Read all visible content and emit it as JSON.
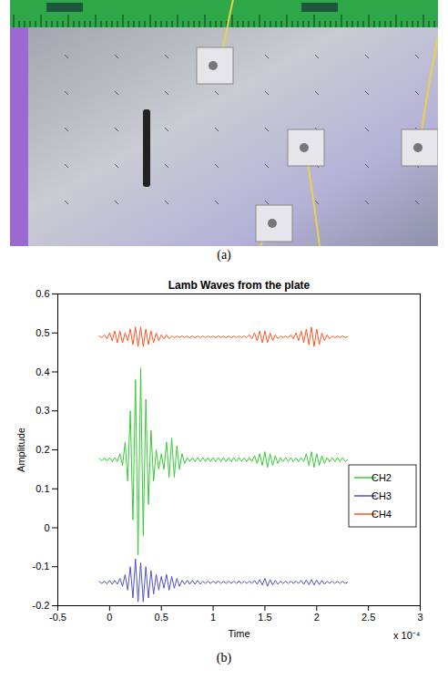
{
  "captions": [
    "(a)",
    "(b)"
  ],
  "chart_data": {
    "type": "line",
    "title": "Lamb Waves from the plate",
    "xlabel": "Time",
    "ylabel": "Amplitude",
    "annotations": [
      "x 10⁻⁴"
    ],
    "xlim": [
      -0.5,
      3
    ],
    "xticks": [
      -0.5,
      0,
      0.5,
      1,
      1.5,
      2,
      2.5,
      3
    ],
    "ylim": [
      -0.2,
      0.6
    ],
    "yticks": [
      -0.2,
      -0.1,
      0,
      0.1,
      0.2,
      0.3,
      0.4,
      0.5,
      0.6
    ],
    "grid": false,
    "legend": "lower right",
    "x": [
      -0.1,
      -0.075,
      -0.05,
      -0.025,
      0,
      0.025,
      0.05,
      0.075,
      0.1,
      0.125,
      0.15,
      0.175,
      0.2,
      0.225,
      0.25,
      0.275,
      0.3,
      0.325,
      0.35,
      0.375,
      0.4,
      0.425,
      0.45,
      0.475,
      0.5,
      0.525,
      0.55,
      0.575,
      0.6,
      0.625,
      0.65,
      0.675,
      0.7,
      0.725,
      0.75,
      0.775,
      0.8,
      0.825,
      0.85,
      0.875,
      0.9,
      0.925,
      0.95,
      0.975,
      1,
      1.025,
      1.05,
      1.075,
      1.1,
      1.125,
      1.15,
      1.175,
      1.2,
      1.225,
      1.25,
      1.275,
      1.3,
      1.325,
      1.35,
      1.375,
      1.4,
      1.425,
      1.45,
      1.475,
      1.5,
      1.525,
      1.55,
      1.575,
      1.6,
      1.625,
      1.65,
      1.675,
      1.7,
      1.725,
      1.75,
      1.775,
      1.8,
      1.825,
      1.85,
      1.875,
      1.9,
      1.925,
      1.95,
      1.975,
      2,
      2.025,
      2.05,
      2.075,
      2.1,
      2.125,
      2.15,
      2.175,
      2.2,
      2.225,
      2.25,
      2.275,
      2.3
    ],
    "series": [
      {
        "name": "CH2",
        "color": "#33cc33",
        "values": [
          0.178,
          0.172,
          0.179,
          0.171,
          0.18,
          0.17,
          0.18,
          0.17,
          0.19,
          0.16,
          0.22,
          0.12,
          0.3,
          0.02,
          0.38,
          -0.07,
          0.41,
          -0.02,
          0.33,
          0.06,
          0.25,
          0.12,
          0.2,
          0.15,
          0.19,
          0.15,
          0.22,
          0.13,
          0.23,
          0.13,
          0.21,
          0.15,
          0.19,
          0.165,
          0.18,
          0.17,
          0.18,
          0.17,
          0.18,
          0.17,
          0.18,
          0.17,
          0.18,
          0.17,
          0.18,
          0.17,
          0.18,
          0.17,
          0.18,
          0.17,
          0.18,
          0.17,
          0.18,
          0.17,
          0.18,
          0.17,
          0.18,
          0.17,
          0.18,
          0.17,
          0.185,
          0.165,
          0.19,
          0.16,
          0.195,
          0.155,
          0.19,
          0.16,
          0.185,
          0.165,
          0.18,
          0.17,
          0.18,
          0.17,
          0.18,
          0.17,
          0.18,
          0.17,
          0.18,
          0.17,
          0.19,
          0.16,
          0.195,
          0.155,
          0.19,
          0.16,
          0.185,
          0.165,
          0.18,
          0.17,
          0.18,
          0.17,
          0.18,
          0.17,
          0.18,
          0.17,
          0.175
        ]
      },
      {
        "name": "CH3",
        "color": "#5050c8",
        "values": [
          -0.138,
          -0.143,
          -0.137,
          -0.144,
          -0.135,
          -0.145,
          -0.135,
          -0.145,
          -0.13,
          -0.15,
          -0.12,
          -0.16,
          -0.1,
          -0.18,
          -0.08,
          -0.19,
          -0.09,
          -0.19,
          -0.1,
          -0.18,
          -0.11,
          -0.17,
          -0.12,
          -0.16,
          -0.125,
          -0.155,
          -0.12,
          -0.16,
          -0.125,
          -0.155,
          -0.13,
          -0.15,
          -0.135,
          -0.145,
          -0.135,
          -0.145,
          -0.135,
          -0.145,
          -0.135,
          -0.145,
          -0.137,
          -0.143,
          -0.137,
          -0.143,
          -0.137,
          -0.143,
          -0.137,
          -0.143,
          -0.137,
          -0.143,
          -0.137,
          -0.143,
          -0.137,
          -0.143,
          -0.137,
          -0.143,
          -0.137,
          -0.143,
          -0.137,
          -0.143,
          -0.135,
          -0.145,
          -0.133,
          -0.147,
          -0.13,
          -0.15,
          -0.133,
          -0.147,
          -0.135,
          -0.145,
          -0.137,
          -0.143,
          -0.137,
          -0.143,
          -0.137,
          -0.143,
          -0.137,
          -0.143,
          -0.135,
          -0.145,
          -0.134,
          -0.146,
          -0.133,
          -0.147,
          -0.134,
          -0.146,
          -0.135,
          -0.145,
          -0.137,
          -0.143,
          -0.137,
          -0.143,
          -0.137,
          -0.143,
          -0.137,
          -0.143,
          -0.14
        ]
      },
      {
        "name": "CH4",
        "color": "#ff5522",
        "values": [
          0.492,
          0.488,
          0.495,
          0.485,
          0.5,
          0.48,
          0.505,
          0.475,
          0.505,
          0.475,
          0.5,
          0.48,
          0.51,
          0.47,
          0.515,
          0.465,
          0.515,
          0.465,
          0.51,
          0.47,
          0.505,
          0.475,
          0.5,
          0.48,
          0.495,
          0.485,
          0.495,
          0.485,
          0.492,
          0.488,
          0.492,
          0.488,
          0.492,
          0.488,
          0.492,
          0.488,
          0.492,
          0.488,
          0.492,
          0.488,
          0.492,
          0.488,
          0.492,
          0.488,
          0.492,
          0.488,
          0.492,
          0.488,
          0.492,
          0.488,
          0.492,
          0.488,
          0.492,
          0.488,
          0.492,
          0.488,
          0.492,
          0.488,
          0.495,
          0.485,
          0.5,
          0.48,
          0.505,
          0.475,
          0.505,
          0.475,
          0.5,
          0.48,
          0.495,
          0.485,
          0.492,
          0.488,
          0.492,
          0.488,
          0.495,
          0.485,
          0.5,
          0.48,
          0.505,
          0.475,
          0.51,
          0.47,
          0.515,
          0.465,
          0.51,
          0.47,
          0.5,
          0.48,
          0.495,
          0.485,
          0.492,
          0.488,
          0.492,
          0.488,
          0.492,
          0.488,
          0.49
        ]
      }
    ]
  }
}
